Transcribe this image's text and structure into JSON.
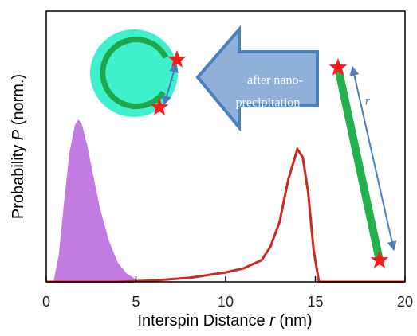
{
  "chart_data": {
    "type": "line",
    "x_label": [
      "Interspin Distance",
      "r",
      "(nm)"
    ],
    "y_label": [
      "Probability",
      "P",
      "(norm.)"
    ],
    "xlim": [
      0,
      20
    ],
    "xticks": [
      0,
      5,
      10,
      15,
      20
    ],
    "ylim": [
      0,
      1
    ],
    "series": [
      {
        "color": "#c27be0",
        "fill": true,
        "x": [
          0.4,
          0.7,
          1.0,
          1.3,
          1.6,
          1.8,
          2.0,
          2.3,
          2.6,
          3.0,
          3.5,
          4.0,
          4.5,
          5.0
        ],
        "values": [
          0,
          0.1,
          0.3,
          0.48,
          0.58,
          0.6,
          0.58,
          0.5,
          0.4,
          0.27,
          0.15,
          0.07,
          0.03,
          0.01
        ]
      },
      {
        "color": "#cc2a1a",
        "fill": false,
        "x": [
          0,
          4,
          6,
          8,
          9,
          10,
          11,
          12,
          12.5,
          13,
          13.5,
          14,
          14.3,
          14.6,
          14.9,
          15.2,
          16,
          20
        ],
        "values": [
          0,
          0,
          0.005,
          0.015,
          0.025,
          0.035,
          0.05,
          0.08,
          0.13,
          0.22,
          0.38,
          0.49,
          0.46,
          0.33,
          0.12,
          0,
          0,
          0
        ]
      }
    ],
    "annotations": [
      "after nano-",
      "precipitation",
      "r",
      "r"
    ]
  }
}
